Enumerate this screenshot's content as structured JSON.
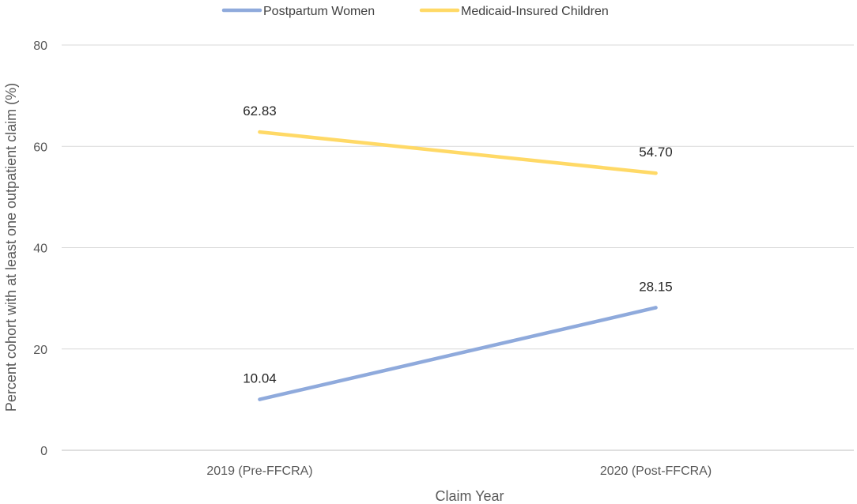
{
  "chart_data": {
    "type": "line",
    "title": "",
    "categories": [
      "2019 (Pre-FFCRA)",
      "2020 (Post-FFCRA)"
    ],
    "series": [
      {
        "name": "Postpartum Women",
        "values": [
          10.04,
          28.15
        ],
        "labels": [
          "10.04",
          "28.15"
        ],
        "color": "#8faadc"
      },
      {
        "name": "Medicaid-Insured Children",
        "values": [
          62.83,
          54.7
        ],
        "labels": [
          "62.83",
          "54.70"
        ],
        "color": "#ffd966"
      }
    ],
    "xlabel": "Claim Year",
    "ylabel": "Percent cohort with at least one outpatient  claim (%)",
    "ylim": [
      0,
      80
    ],
    "yticks": [
      0,
      20,
      40,
      60,
      80
    ],
    "ytick_labels": [
      "0",
      "20",
      "40",
      "60",
      "80"
    ],
    "grid": true,
    "legend_position": "top-center"
  }
}
